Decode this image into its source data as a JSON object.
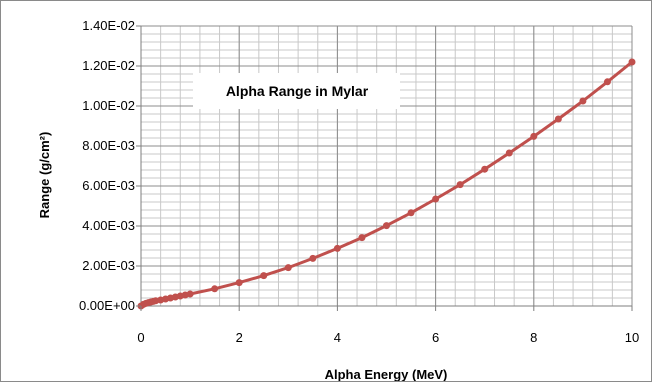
{
  "chart_data": {
    "type": "line",
    "title": "Alpha Range in Mylar",
    "xlabel": "Alpha Energy (MeV)",
    "ylabel": "Range (g/cm²)",
    "xlim": [
      0,
      10
    ],
    "ylim": [
      0,
      0.014
    ],
    "x_ticks": [
      "0",
      "2",
      "4",
      "6",
      "8",
      "10"
    ],
    "y_ticks": [
      "0.00E+00",
      "2.00E-03",
      "4.00E-03",
      "6.00E-03",
      "8.00E-03",
      "1.00E-02",
      "1.20E-02",
      "1.40E-02"
    ],
    "grid": true,
    "minor_grid": true,
    "legend": "none",
    "line_color": "#c0504d",
    "series": [
      {
        "x": [
          0.0,
          0.05,
          0.1,
          0.15,
          0.2,
          0.25,
          0.3,
          0.4,
          0.5,
          0.6,
          0.7,
          0.8,
          0.9,
          1.0,
          1.5,
          2.0,
          2.5,
          3.0,
          3.5,
          4.0,
          4.5,
          5.0,
          5.5,
          6.0,
          6.5,
          7.0,
          7.5,
          8.0,
          8.5,
          9.0,
          9.5,
          10.0
        ],
        "y": [
          0.0,
          8e-05,
          0.00013,
          0.00017,
          0.0002,
          0.00023,
          0.00026,
          0.0003,
          0.00035,
          0.0004,
          0.00045,
          0.0005,
          0.00055,
          0.0006,
          0.00086,
          0.00117,
          0.00152,
          0.00192,
          0.00238,
          0.00288,
          0.00342,
          0.00402,
          0.00466,
          0.00535,
          0.00607,
          0.00684,
          0.00765,
          0.00848,
          0.00935,
          0.01025,
          0.01121,
          0.0122
        ]
      }
    ]
  }
}
